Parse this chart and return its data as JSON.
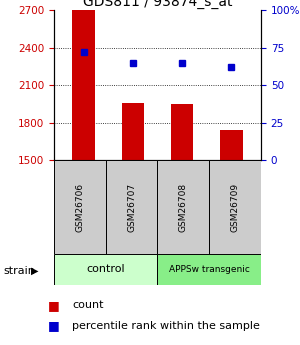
{
  "title": "GDS811 / 93874_s_at",
  "samples": [
    "GSM26706",
    "GSM26707",
    "GSM26708",
    "GSM26709"
  ],
  "counts": [
    2700,
    1960,
    1950,
    1740
  ],
  "percentiles": [
    72,
    65,
    65,
    62
  ],
  "left_ylim": [
    1500,
    2700
  ],
  "right_ylim": [
    0,
    100
  ],
  "left_yticks": [
    1500,
    1800,
    2100,
    2400,
    2700
  ],
  "right_yticks": [
    0,
    25,
    50,
    75,
    100
  ],
  "right_yticklabels": [
    "0",
    "25",
    "50",
    "75",
    "100%"
  ],
  "bar_color": "#cc0000",
  "dot_color": "#0000cc",
  "bar_width": 0.45,
  "control_color": "#ccffcc",
  "transgenic_color": "#88ee88",
  "label_box_color": "#cccccc",
  "strain_label": "strain",
  "legend_count": "count",
  "legend_percentile": "percentile rank within the sample",
  "gridline_ticks": [
    1800,
    2100,
    2400
  ]
}
